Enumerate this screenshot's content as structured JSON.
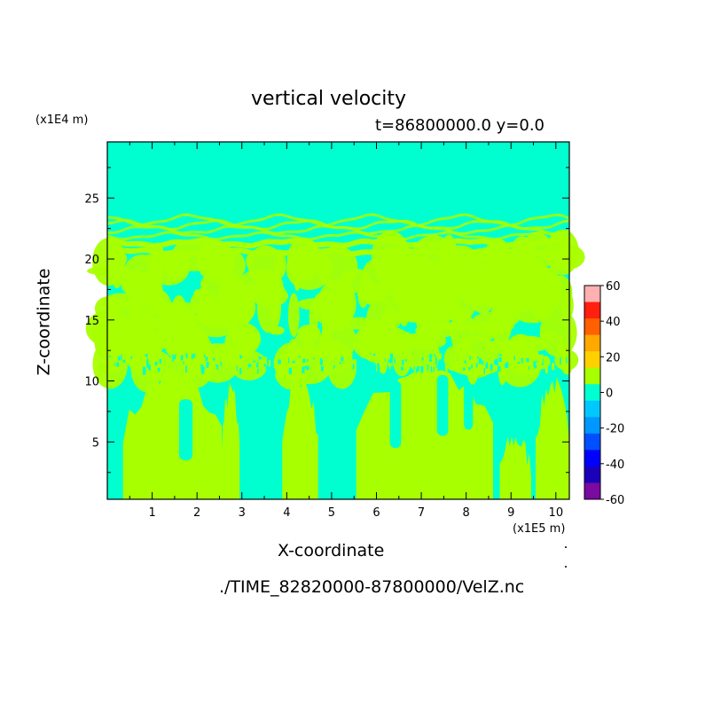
{
  "chart_data": {
    "type": "heatmap",
    "title": "vertical velocity",
    "subtitle": "t=86800000.0 y=0.0",
    "xlabel": "X-coordinate",
    "ylabel": "Z-coordinate",
    "x_scale_label": "(x1E5 m)",
    "y_scale_label": "(x1E4 m)",
    "file_label": "./TIME_82820000-87800000/VelZ.nc",
    "xlim": [
      0,
      10.3
    ],
    "ylim": [
      0.3,
      29.6
    ],
    "x_ticks": [
      "1",
      "2",
      "3",
      "4",
      "5",
      "6",
      "7",
      "8",
      "9",
      "10"
    ],
    "y_ticks": [
      "5",
      "10",
      "15",
      "20",
      "25"
    ],
    "colorbar": {
      "ticks": [
        "60",
        "40",
        "20",
        "0",
        "-20",
        "-40",
        "-60"
      ],
      "levels": [
        -60,
        -50,
        -40,
        -30,
        -20,
        -10,
        0,
        10,
        20,
        30,
        40,
        50,
        60
      ],
      "colors": [
        "#7a0aa0",
        "#1a00b8",
        "#0000ff",
        "#0050ff",
        "#0098ff",
        "#00c8ff",
        "#00ffd0",
        "#a8ff00",
        "#ffd000",
        "#ffa800",
        "#ff6000",
        "#ff2010",
        "#ffb0b0"
      ]
    },
    "colors": {
      "background_field": "#00ffd0",
      "positive_field": "#a8ff00"
    }
  }
}
